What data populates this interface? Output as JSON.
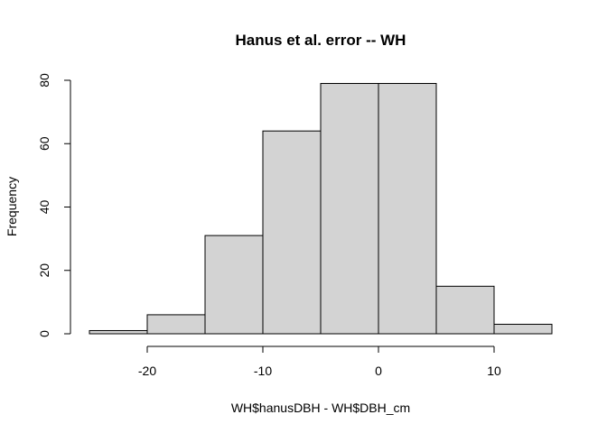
{
  "chart_data": {
    "type": "histogram",
    "title": "Hanus et al. error -- WH",
    "xlabel": "WH$hanusDBH - WH$DBH_cm",
    "ylabel": "Frequency",
    "bins": [
      {
        "start": -25,
        "end": -20,
        "count": 1
      },
      {
        "start": -20,
        "end": -15,
        "count": 6
      },
      {
        "start": -15,
        "end": -10,
        "count": 31
      },
      {
        "start": -10,
        "end": -5,
        "count": 64
      },
      {
        "start": -5,
        "end": 0,
        "count": 79
      },
      {
        "start": 0,
        "end": 5,
        "count": 79
      },
      {
        "start": 5,
        "end": 10,
        "count": 15
      },
      {
        "start": 10,
        "end": 15,
        "count": 3
      }
    ],
    "xlim": [
      -25,
      15
    ],
    "ylim": [
      0,
      80
    ],
    "x_ticks": [
      -20,
      -10,
      0,
      10
    ],
    "y_ticks": [
      0,
      20,
      40,
      60,
      80
    ],
    "bar_color": "#d3d3d3",
    "edge_color": "#000000",
    "grid": false
  }
}
